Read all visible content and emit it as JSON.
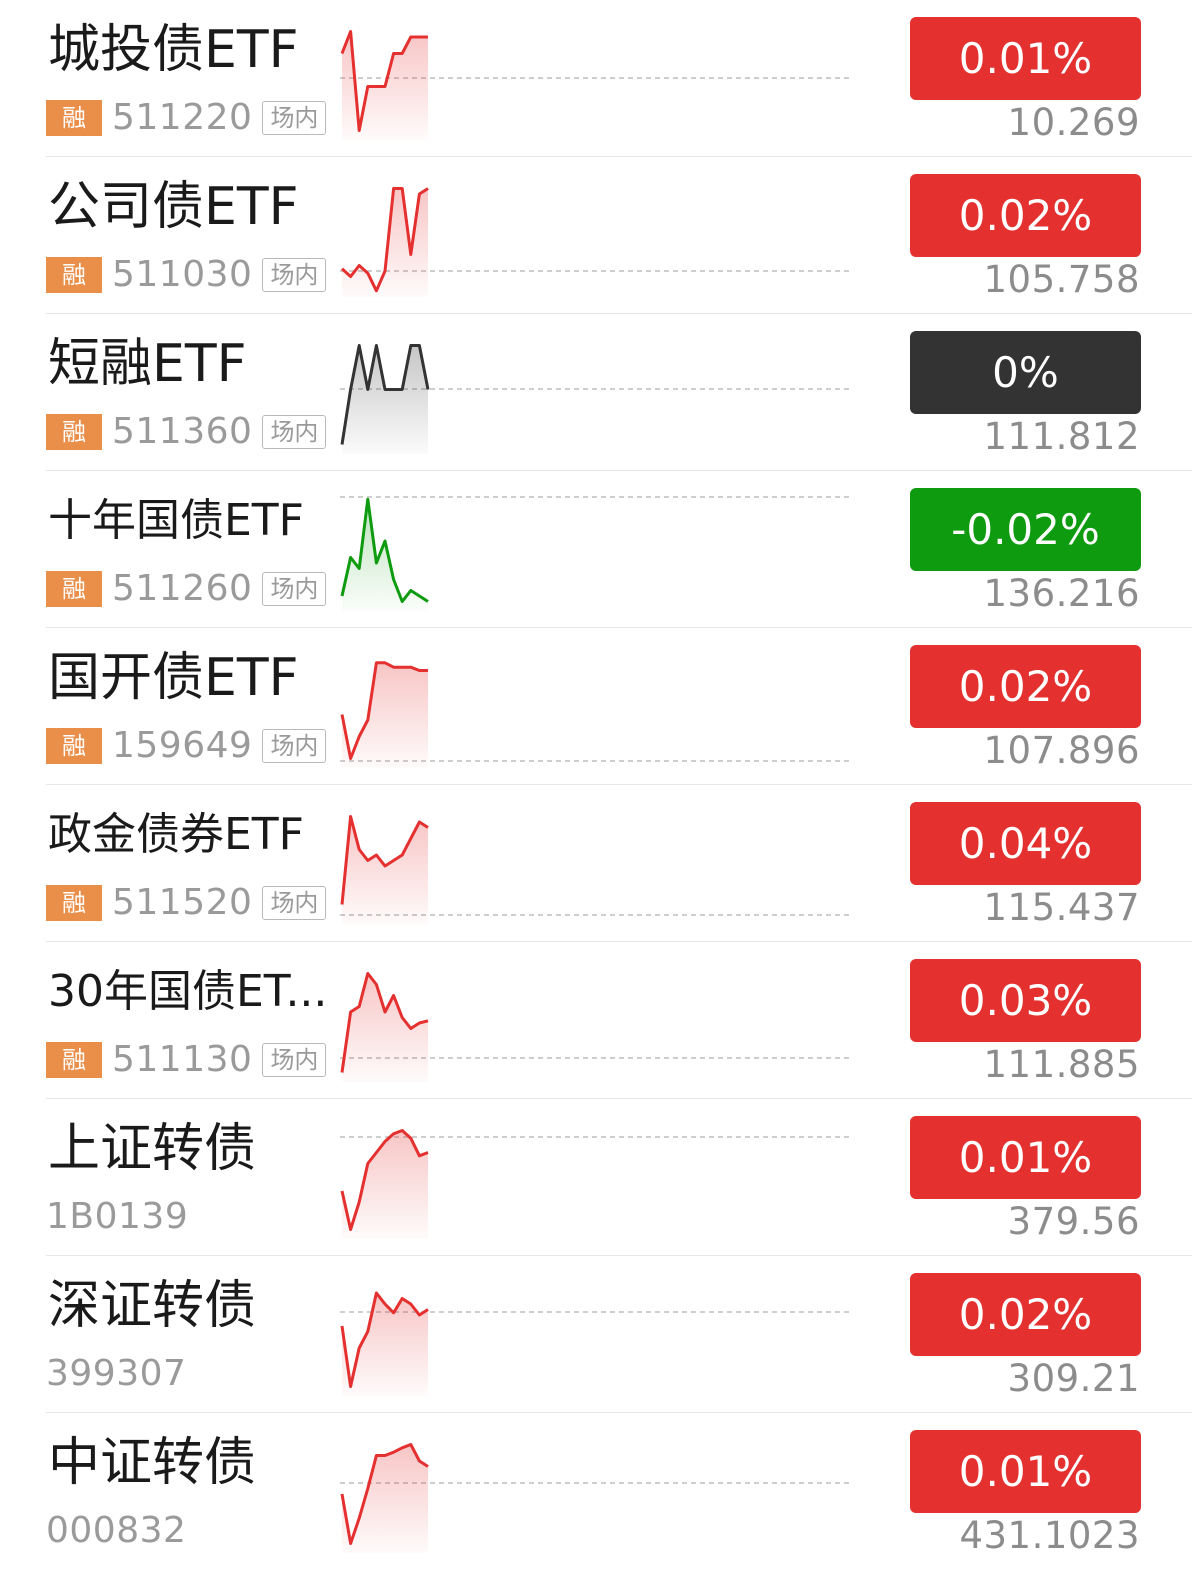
{
  "colors": {
    "up": "#e53030",
    "down": "#0f9b0f",
    "flat": "#333333",
    "rong_badge": "#ea8f4a"
  },
  "rong_label": "融",
  "venue_label": "场内",
  "rows": [
    {
      "name": "城投债ETF",
      "code": "511220",
      "has_rong": true,
      "has_venue": true,
      "change": "0.01%",
      "trend": "up",
      "price": "10.269",
      "spark": [
        0.25,
        0.05,
        0.95,
        0.55,
        0.55,
        0.55,
        0.25,
        0.25,
        0.1,
        0.1,
        0.1
      ]
    },
    {
      "name": "公司债ETF",
      "code": "511030",
      "has_rong": true,
      "has_venue": true,
      "change": "0.02%",
      "trend": "up",
      "price": "105.758",
      "spark": [
        0.78,
        0.85,
        0.75,
        0.82,
        0.98,
        0.8,
        0.05,
        0.05,
        0.65,
        0.1,
        0.05
      ]
    },
    {
      "name": "短融ETF",
      "code": "511360",
      "has_rong": true,
      "has_venue": true,
      "change": "0%",
      "trend": "flat",
      "price": "111.812",
      "spark": [
        0.95,
        0.45,
        0.05,
        0.45,
        0.05,
        0.45,
        0.45,
        0.45,
        0.05,
        0.05,
        0.45
      ]
    },
    {
      "name": "十年国债ETF",
      "code": "511260",
      "has_rong": true,
      "has_venue": true,
      "change": "-0.02%",
      "trend": "down",
      "price": "136.216",
      "spark": [
        0.9,
        0.55,
        0.65,
        0.02,
        0.6,
        0.4,
        0.75,
        0.95,
        0.85,
        0.9,
        0.95
      ]
    },
    {
      "name": "国开债ETF",
      "code": "159649",
      "has_rong": true,
      "has_venue": true,
      "change": "0.02%",
      "trend": "up",
      "price": "107.896",
      "spark": [
        0.55,
        0.95,
        0.75,
        0.6,
        0.08,
        0.08,
        0.12,
        0.12,
        0.12,
        0.15,
        0.15
      ]
    },
    {
      "name": "政金债券ETF",
      "code": "511520",
      "has_rong": true,
      "has_venue": true,
      "change": "0.04%",
      "trend": "up",
      "price": "115.437",
      "spark": [
        0.85,
        0.05,
        0.35,
        0.45,
        0.4,
        0.5,
        0.45,
        0.4,
        0.25,
        0.1,
        0.15
      ]
    },
    {
      "name": "30年国债ET...",
      "code": "511130",
      "has_rong": true,
      "has_venue": true,
      "change": "0.03%",
      "trend": "up",
      "price": "111.885",
      "spark": [
        0.95,
        0.4,
        0.35,
        0.05,
        0.15,
        0.4,
        0.25,
        0.45,
        0.55,
        0.5,
        0.48
      ]
    },
    {
      "name": "上证转债",
      "code": "1B0139",
      "has_rong": false,
      "has_venue": false,
      "change": "0.01%",
      "trend": "up",
      "price": "379.56",
      "spark": [
        0.6,
        0.95,
        0.7,
        0.35,
        0.25,
        0.15,
        0.08,
        0.05,
        0.12,
        0.28,
        0.25
      ]
    },
    {
      "name": "深证转债",
      "code": "399307",
      "has_rong": false,
      "has_venue": false,
      "change": "0.02%",
      "trend": "up",
      "price": "309.21",
      "spark": [
        0.4,
        0.95,
        0.6,
        0.45,
        0.1,
        0.2,
        0.28,
        0.15,
        0.2,
        0.3,
        0.25
      ]
    },
    {
      "name": "中证转债",
      "code": "000832",
      "has_rong": false,
      "has_venue": false,
      "change": "0.01%",
      "trend": "up",
      "price": "431.1023",
      "spark": [
        0.5,
        0.95,
        0.72,
        0.45,
        0.15,
        0.15,
        0.12,
        0.08,
        0.05,
        0.2,
        0.25
      ]
    }
  ]
}
